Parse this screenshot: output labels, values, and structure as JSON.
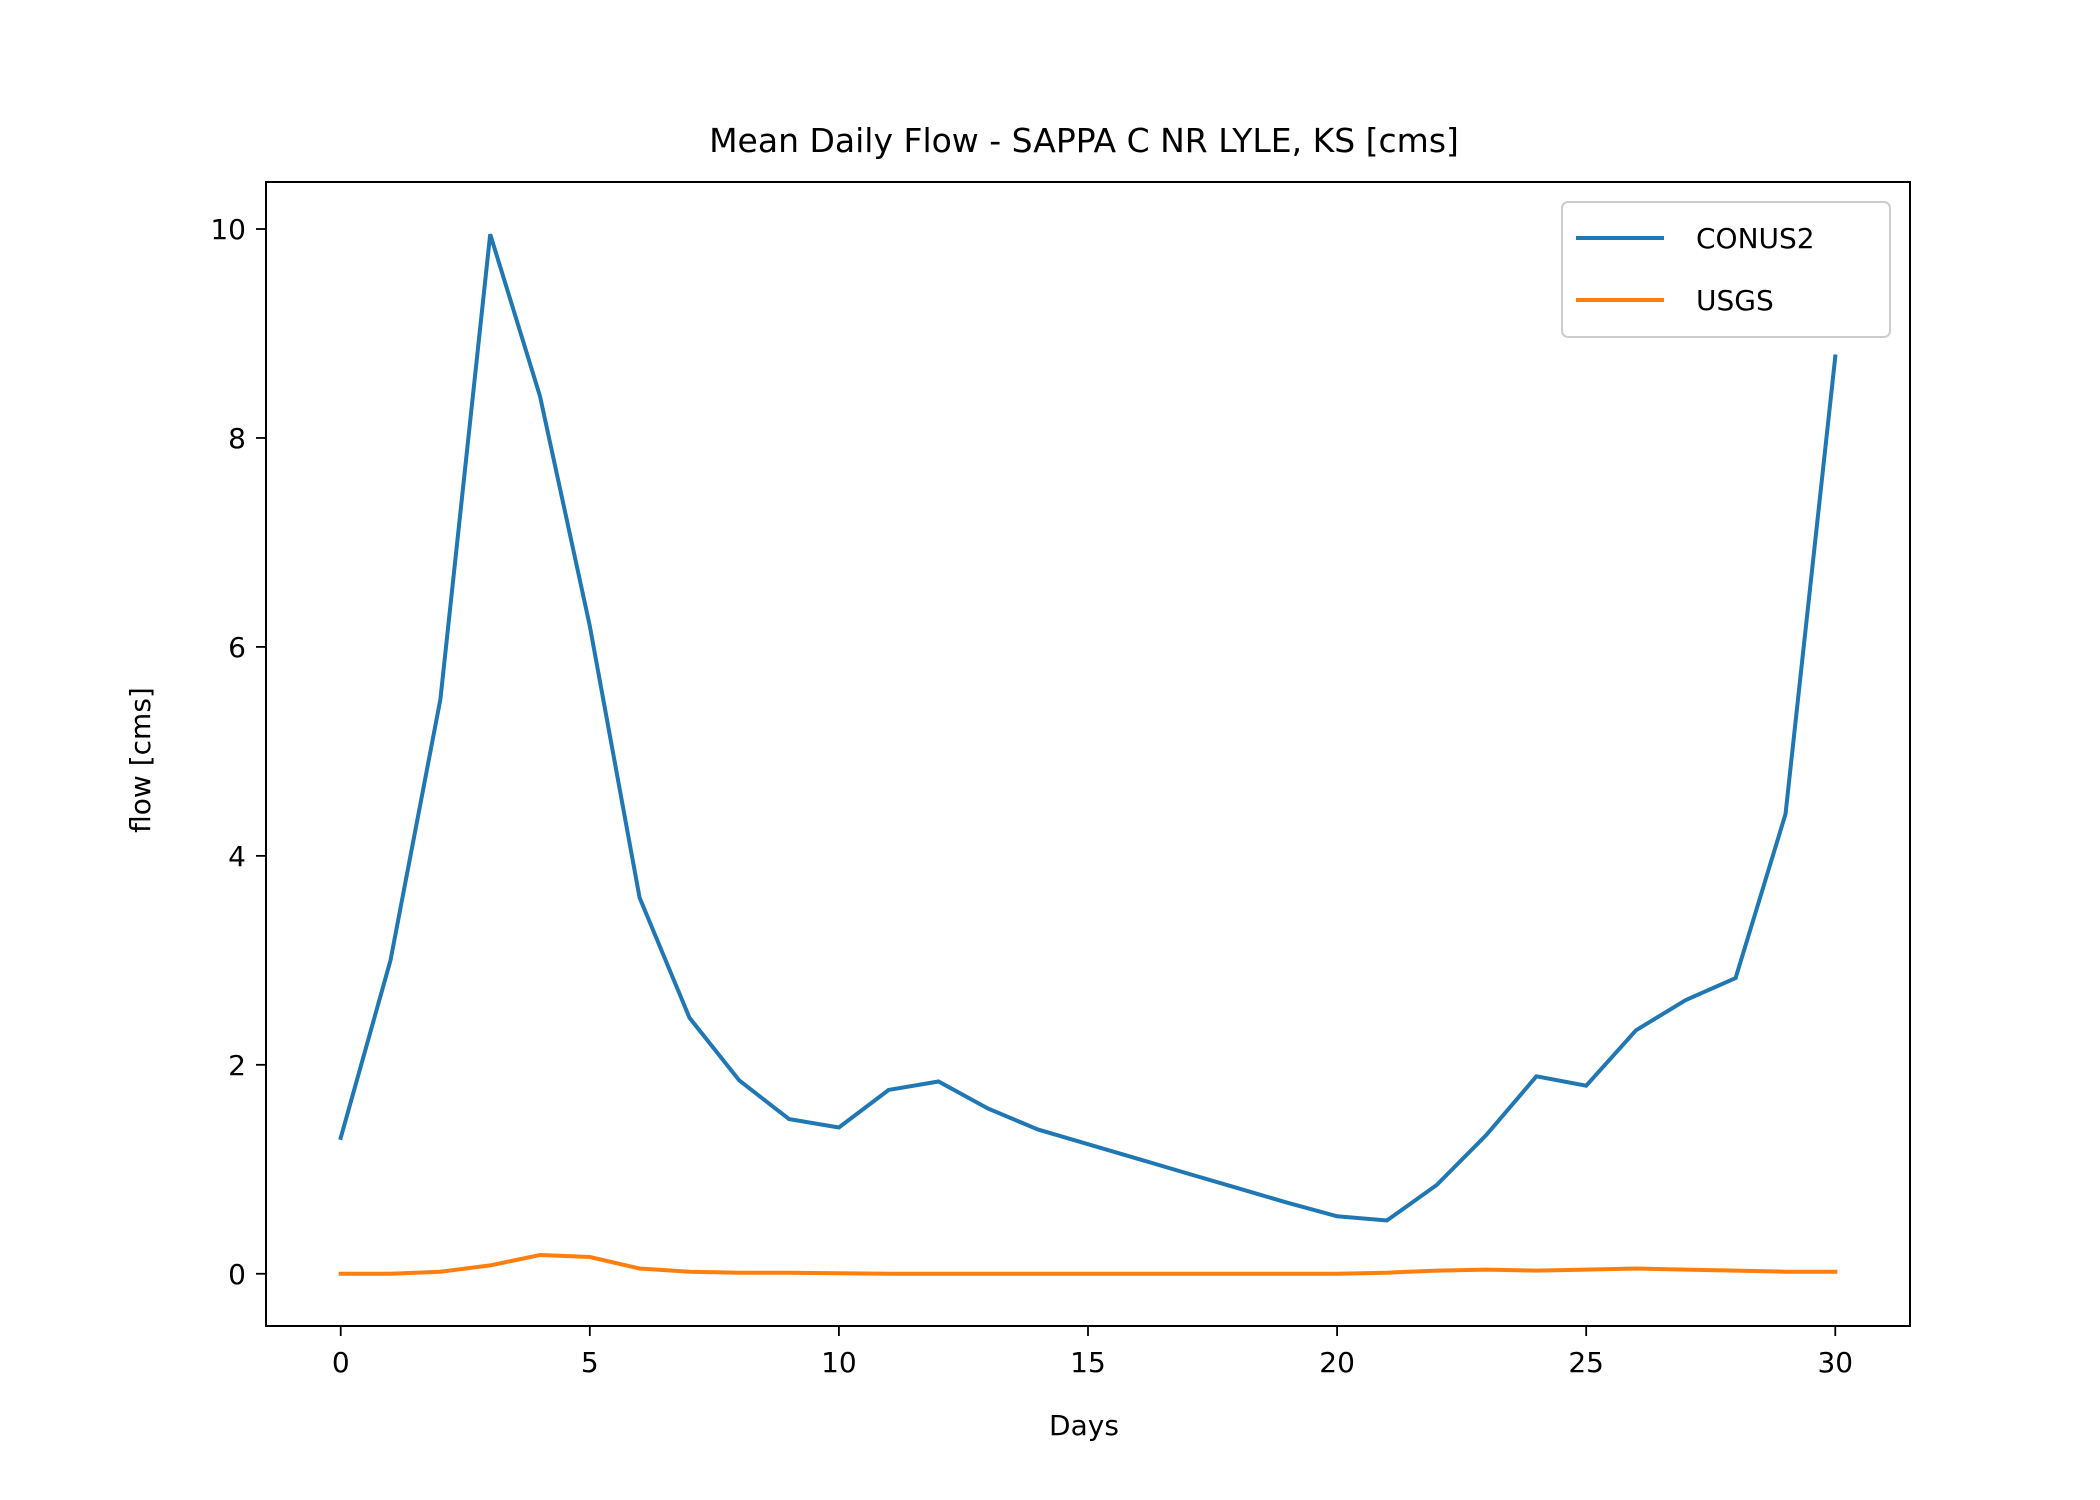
{
  "chart_data": {
    "type": "line",
    "title": "Mean Daily Flow - SAPPA C NR LYLE, KS [cms]",
    "xlabel": "Days",
    "ylabel": "flow [cms]",
    "xlim": [
      -1.5,
      31.5
    ],
    "ylim": [
      -0.5,
      10.45
    ],
    "xticks": [
      0,
      5,
      10,
      15,
      20,
      25,
      30
    ],
    "yticks": [
      0,
      2,
      4,
      6,
      8,
      10
    ],
    "grid": false,
    "legend_position": "top-right",
    "x": [
      0,
      1,
      2,
      3,
      4,
      5,
      6,
      7,
      8,
      9,
      10,
      11,
      12,
      13,
      14,
      15,
      16,
      17,
      18,
      19,
      20,
      21,
      22,
      23,
      24,
      25,
      26,
      27,
      28,
      29,
      30
    ],
    "series": [
      {
        "name": "CONUS2",
        "color": "#1f77b4",
        "values": [
          1.3,
          3.0,
          5.5,
          9.95,
          8.4,
          6.2,
          3.6,
          2.45,
          1.85,
          1.48,
          1.4,
          1.76,
          1.84,
          1.58,
          1.38,
          1.24,
          1.1,
          0.96,
          0.82,
          0.68,
          0.55,
          0.51,
          0.85,
          1.33,
          1.89,
          1.8,
          2.33,
          2.62,
          2.83,
          4.4,
          8.78
        ]
      },
      {
        "name": "USGS",
        "color": "#ff7f0e",
        "values": [
          0.0,
          0.0,
          0.02,
          0.08,
          0.18,
          0.16,
          0.05,
          0.02,
          0.01,
          0.01,
          0.005,
          0.0,
          0.0,
          0.0,
          0.0,
          0.0,
          0.0,
          0.0,
          0.0,
          0.0,
          0.0,
          0.01,
          0.03,
          0.04,
          0.03,
          0.04,
          0.05,
          0.04,
          0.03,
          0.02,
          0.02
        ]
      }
    ]
  }
}
